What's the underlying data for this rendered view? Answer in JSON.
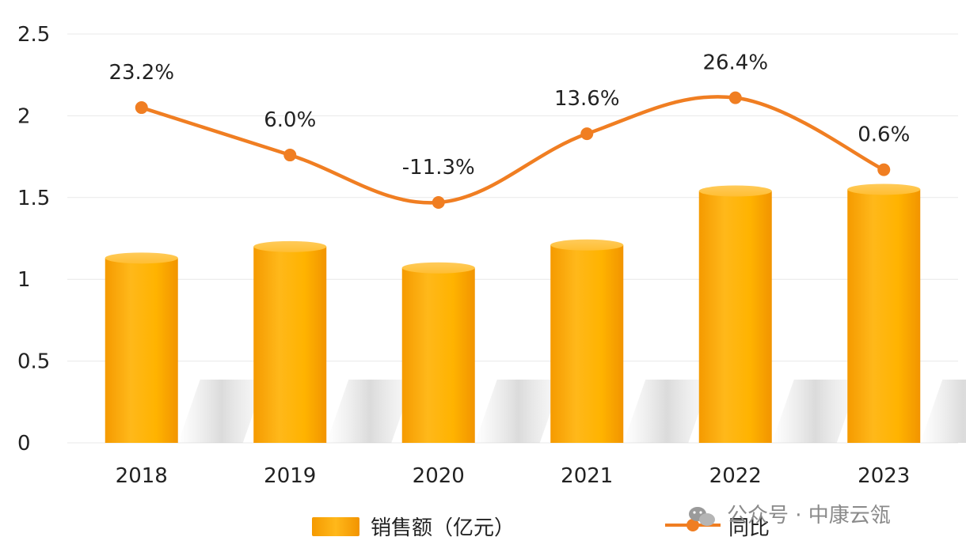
{
  "chart_data": {
    "type": "bar",
    "categories": [
      "2018",
      "2019",
      "2020",
      "2021",
      "2022",
      "2023"
    ],
    "series": [
      {
        "name": "销售额（亿元）",
        "type": "bar",
        "values": [
          1.13,
          1.2,
          1.07,
          1.21,
          1.54,
          1.55
        ]
      },
      {
        "name": "同比",
        "type": "line",
        "plotted_values": [
          2.05,
          1.76,
          1.47,
          1.89,
          2.11,
          1.67
        ],
        "labels": [
          "23.2%",
          "6.0%",
          "-11.3%",
          "13.6%",
          "26.4%",
          "0.6%"
        ]
      }
    ],
    "yticks": [
      "0",
      "0.5",
      "1",
      "1.5",
      "2",
      "2.5"
    ],
    "ylim": [
      0,
      2.5
    ],
    "grid": true,
    "legend": "bottom",
    "colors": {
      "bar": "#FFB300",
      "bar_dark": "#F59A00",
      "line": "#F07E22",
      "grid": "#e8e8e8"
    }
  },
  "watermark": {
    "icon": "wechat-icon",
    "text": "公众号 · 中康云瓴"
  }
}
